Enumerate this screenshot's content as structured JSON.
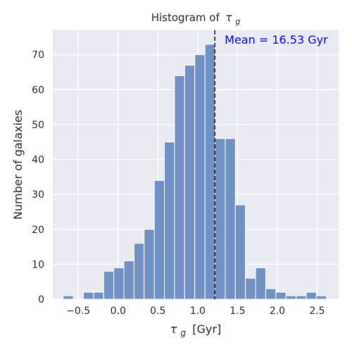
{
  "chart_data": {
    "type": "bar",
    "title_prefix": "Histogram of",
    "xlabel_suffix": "[Gyr]",
    "symbol": {
      "base": "τ",
      "sub": "g"
    },
    "ylabel": "Number of galaxies",
    "xlim": [
      -0.82,
      2.77
    ],
    "ylim": [
      0,
      77
    ],
    "x_ticks": [
      -0.5,
      0.0,
      0.5,
      1.0,
      1.5,
      2.0,
      2.5
    ],
    "x_tick_labels": [
      "−0.5",
      "0.0",
      "0.5",
      "1.0",
      "1.5",
      "2.0",
      "2.5"
    ],
    "y_ticks": [
      0,
      10,
      20,
      30,
      40,
      50,
      60,
      70
    ],
    "y_tick_labels": [
      "0",
      "10",
      "20",
      "30",
      "40",
      "50",
      "60",
      "70"
    ],
    "bin_start": -0.69,
    "bin_width": 0.1272,
    "values": [
      1,
      0,
      2,
      2,
      8,
      9,
      11,
      16,
      20,
      34,
      45,
      64,
      67,
      70,
      73,
      46,
      46,
      27,
      6,
      9,
      3,
      2,
      1,
      1,
      2,
      1
    ],
    "mean_line_x": 1.215,
    "mean_label": "Mean = 16.53 Gyr",
    "colors": {
      "background": "#eaeaf2",
      "grid": "#ffffff",
      "bar_fill": "#7191c4",
      "bar_edge": "#ffffff",
      "mean_line": "#1a1a1a",
      "annotation": "#0000ff"
    },
    "grid": true
  }
}
